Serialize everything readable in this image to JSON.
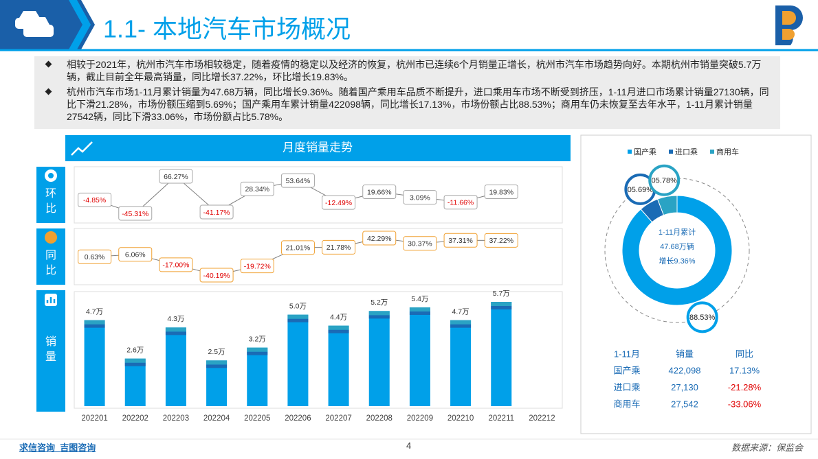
{
  "header": {
    "title": "1.1- 本地汽车市场概况"
  },
  "bullets": [
    "相较于2021年，杭州市汽车市场相较稳定，随着疫情的稳定以及经济的恢复，杭州市已连续6个月销量正增长，杭州市汽车市场趋势向好。本期杭州市销量突破5.7万辆，截止目前全年最高销量，同比增长37.22%，环比增长19.83%。",
    "杭州市汽车市场1-11月累计销量为47.68万辆，同比增长9.36%。随着国产乘用车品质不断提升，进口乘用车市场不断受到挤压，1-11月进口市场累计销量27130辆，同比下滑21.28%，市场份额压缩到5.69%；国产乘用车累计销量422098辆，同比增长17.13%，市场份额占比88.53%；商用车仍未恢复至去年水平，1-11月累计销量27542辆，同比下滑33.06%，市场份额占比5.78%。"
  ],
  "banner": "月度销量走势",
  "chart_data": [
    {
      "type": "line",
      "label": "环比",
      "color": "#7f7f7f",
      "box_color": "#a6a6a6",
      "values": [
        -4.85,
        -45.31,
        66.27,
        -41.17,
        28.34,
        53.64,
        -12.49,
        19.66,
        3.09,
        -11.66,
        19.83,
        null
      ],
      "value_labels": [
        "-4.85%",
        "-45.31%",
        "66.27%",
        "-41.17%",
        "28.34%",
        "53.64%",
        "-12.49%",
        "19.66%",
        "3.09%",
        "-11.66%",
        "19.83%",
        null
      ]
    },
    {
      "type": "line",
      "label": "同比",
      "color": "#7f7f7f",
      "box_color": "#f0a030",
      "values": [
        0.63,
        6.06,
        -17.0,
        -40.19,
        -19.72,
        21.01,
        21.78,
        42.29,
        30.37,
        37.31,
        37.22,
        null
      ],
      "value_labels": [
        "0.63%",
        "6.06%",
        "-17.00%",
        "-40.19%",
        "-19.72%",
        "21.01%",
        "21.78%",
        "42.29%",
        "30.37%",
        "37.31%",
        "37.22%",
        null
      ]
    },
    {
      "type": "bar",
      "label": "销量",
      "color": "#00a0e9",
      "categories": [
        "202201",
        "202202",
        "202203",
        "202204",
        "202205",
        "202206",
        "202207",
        "202208",
        "202209",
        "202210",
        "202211",
        "202212"
      ],
      "values": [
        4.7,
        2.6,
        4.3,
        2.5,
        3.2,
        5.0,
        4.4,
        5.2,
        5.4,
        4.7,
        5.7,
        null
      ],
      "value_labels": [
        "4.7万",
        "2.6万",
        "4.3万",
        "2.5万",
        "3.2万",
        "5.0万",
        "4.4万",
        "5.2万",
        "5.4万",
        "4.7万",
        "5.7万",
        null
      ]
    },
    {
      "type": "pie",
      "categories": [
        "国产乘",
        "进口乘",
        "商用车"
      ],
      "values": [
        88.53,
        5.69,
        5.78
      ],
      "value_labels": [
        "88.53%",
        "05.69%",
        "05.78%"
      ],
      "colors": [
        "#00a0e9",
        "#1a6bb5",
        "#2aa3c4"
      ],
      "center_text": [
        "1-11月累计",
        "47.68万辆",
        "增长9.36%"
      ]
    }
  ],
  "table": {
    "header": [
      "1-11月",
      "销量",
      "同比"
    ],
    "rows": [
      [
        "国产乘",
        "422,098",
        "17.13%"
      ],
      [
        "进口乘",
        "27,130",
        "-21.28%"
      ],
      [
        "商用车",
        "27,542",
        "-33.06%"
      ]
    ]
  },
  "footer": {
    "links": [
      "求信咨询",
      "吉图咨询"
    ],
    "page": "4",
    "source": "数据来源：保监会"
  }
}
